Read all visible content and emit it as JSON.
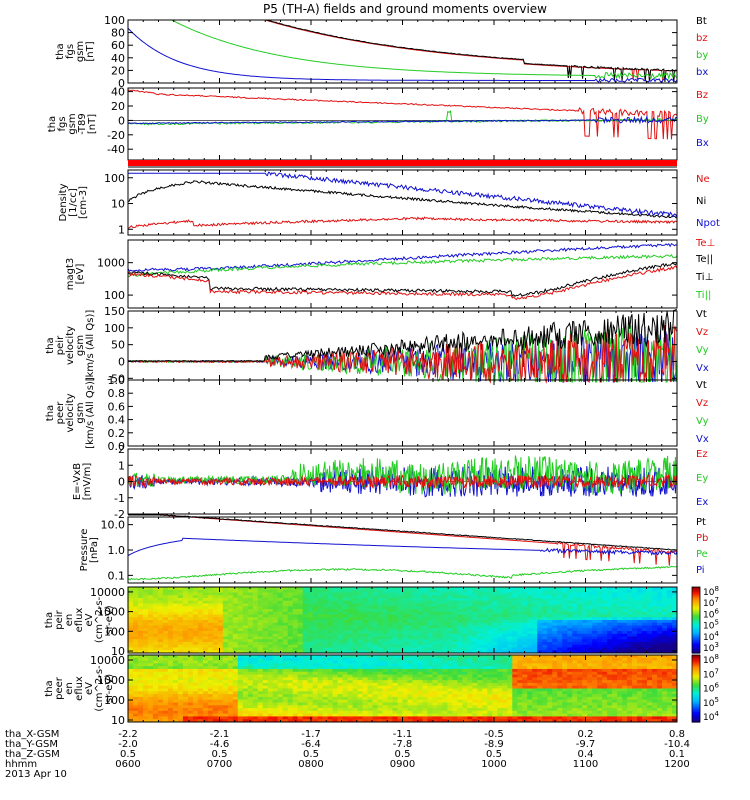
{
  "title": "P5 (TH-A) fields and ground moments overview",
  "date_label": "2013 Apr 10",
  "colors": {
    "black": "#000000",
    "red": "#e01010",
    "green": "#22cc22",
    "blue": "#1010d0"
  },
  "status_bar": {
    "color": "#ff0000"
  },
  "chart_data": [
    {
      "type": "line",
      "panel": "fgs_gsm",
      "ylabel": [
        "tha",
        "fgs",
        "gsm",
        "[nT]"
      ],
      "ylim": [
        0,
        100
      ],
      "yticks": [
        "100",
        "80",
        "60",
        "40",
        "20",
        "0"
      ],
      "legend": [
        {
          "text": "Bt",
          "color": "black"
        },
        {
          "text": "bz",
          "color": "red"
        },
        {
          "text": "by",
          "color": "green"
        },
        {
          "text": "bx",
          "color": "blue"
        }
      ]
    },
    {
      "type": "line",
      "panel": "fgs_gsm_dipole",
      "ylabel": [
        "tha",
        "fgs",
        "gsm",
        "-T89",
        "[nT]"
      ],
      "ylim": [
        -55,
        45
      ],
      "yticks": [
        "40",
        "20",
        "0",
        "-20",
        "-40"
      ],
      "legend": [
        {
          "text": "Bz",
          "color": "red"
        },
        {
          "text": "By",
          "color": "green"
        },
        {
          "text": "Bx",
          "color": "blue"
        }
      ]
    },
    {
      "type": "line",
      "panel": "density",
      "scale": "log",
      "ylabel": [
        "Density",
        "[1/cc]",
        "[cm-3]"
      ],
      "ylim": [
        0.6,
        200
      ],
      "yticks": [
        "100",
        "10",
        "1"
      ],
      "legend": [
        {
          "text": "Ne",
          "color": "red"
        },
        {
          "text": "Ni",
          "color": "black"
        },
        {
          "text": "Npot",
          "color": "blue"
        }
      ]
    },
    {
      "type": "line",
      "panel": "temperature",
      "scale": "log",
      "ylabel": [
        "magt3",
        "[eV]"
      ],
      "ylim": [
        40,
        5000
      ],
      "yticks": [
        "1000",
        "100"
      ],
      "legend": [
        {
          "text": "Te⊥",
          "color": "red"
        },
        {
          "text": "Te||",
          "color": "black"
        },
        {
          "text": "Ti⊥",
          "color": "black"
        },
        {
          "text": "Ti||",
          "color": "green"
        }
      ]
    },
    {
      "type": "line",
      "panel": "peir_velocity",
      "ylabel": [
        "tha",
        "peir",
        "velocity",
        "gsm",
        "[km/s (All Qs)]"
      ],
      "ylim": [
        -55,
        150
      ],
      "yticks": [
        "150",
        "100",
        "50",
        "0",
        "-50"
      ],
      "legend": [
        {
          "text": "Vt",
          "color": "black"
        },
        {
          "text": "Vz",
          "color": "red"
        },
        {
          "text": "Vy",
          "color": "green"
        },
        {
          "text": "Vx",
          "color": "blue"
        }
      ]
    },
    {
      "type": "line",
      "panel": "peer_velocity",
      "ylabel": [
        "tha",
        "peer",
        "velocity",
        "gsm",
        "[km/s (All Qs)]"
      ],
      "ylim": [
        0,
        1
      ],
      "yticks": [
        "1.0",
        "0.8",
        "0.6",
        "0.4",
        "0.2",
        "0.0"
      ],
      "legend": [
        {
          "text": "Vt",
          "color": "black"
        },
        {
          "text": "Vz",
          "color": "red"
        },
        {
          "text": "Vy",
          "color": "green"
        },
        {
          "text": "Vx",
          "color": "blue"
        }
      ]
    },
    {
      "type": "line",
      "panel": "efield",
      "ylabel": [
        "E=-VxB",
        "[mV/m]"
      ],
      "ylim": [
        -2,
        2
      ],
      "yticks": [
        "2",
        "1",
        "0",
        "-1",
        "-2"
      ],
      "legend": [
        {
          "text": "Ez",
          "color": "red"
        },
        {
          "text": "Ey",
          "color": "green"
        },
        {
          "text": "Ex",
          "color": "blue"
        }
      ]
    },
    {
      "type": "line",
      "panel": "pressure",
      "scale": "log",
      "ylabel": [
        "Pressure",
        "[nPa]"
      ],
      "ylim": [
        0.05,
        20
      ],
      "yticks": [
        "10.0",
        "1.0",
        "0.1"
      ],
      "legend": [
        {
          "text": "Pt",
          "color": "black"
        },
        {
          "text": "Pb",
          "color": "red"
        },
        {
          "text": "Pe",
          "color": "green"
        },
        {
          "text": "Pi",
          "color": "blue"
        }
      ]
    },
    {
      "type": "heatmap",
      "panel": "peir_eflux",
      "ylabel": [
        "tha",
        "peir",
        "en",
        "eflux",
        "eV",
        "(cm^2-s-",
        "sr-eV)"
      ],
      "yticks": [
        "10000",
        "1000",
        "100",
        "10"
      ],
      "colorbar_ticks": [
        "10^8",
        "10^7",
        "10^6",
        "10^5",
        "10^4",
        "10^3"
      ]
    },
    {
      "type": "heatmap",
      "panel": "peer_eflux",
      "ylabel": [
        "tha",
        "peer",
        "en",
        "eflux",
        "eV",
        "(cm^2-s-",
        "sr-eV)"
      ],
      "yticks": [
        "10000",
        "1000",
        "100",
        "10"
      ],
      "colorbar_ticks": [
        "10^8",
        "10^7",
        "10^6",
        "10^5",
        "10^4"
      ]
    }
  ],
  "x_axis": {
    "row_labels": [
      "tha_X-GSM",
      "tha_Y-GSM",
      "tha_Z-GSM",
      "hhmm"
    ],
    "ticks": [
      {
        "x": "-2.2",
        "y": "-2.0",
        "z": "0.5",
        "time": "0600"
      },
      {
        "x": "-2.1",
        "y": "-4.6",
        "z": "0.5",
        "time": "0700"
      },
      {
        "x": "-1.7",
        "y": "-6.4",
        "z": "0.5",
        "time": "0800"
      },
      {
        "x": "-1.1",
        "y": "-7.8",
        "z": "0.5",
        "time": "0900"
      },
      {
        "x": "-0.5",
        "y": "-8.9",
        "z": "0.5",
        "time": "1000"
      },
      {
        "x": "0.2",
        "y": "-9.7",
        "z": "0.4",
        "time": "1100"
      },
      {
        "x": "0.8",
        "y": "-10.4",
        "z": "0.1",
        "time": "1200"
      }
    ]
  }
}
